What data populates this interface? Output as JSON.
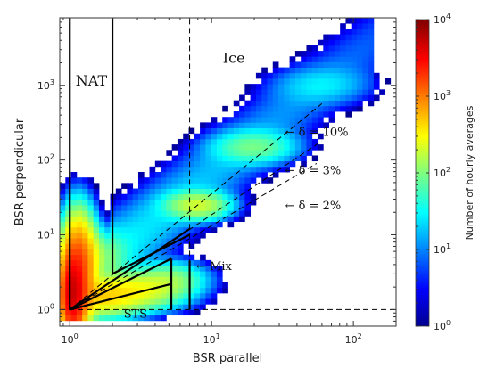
{
  "chart_data": {
    "type": "heatmap",
    "title": "",
    "xlabel": "BSR parallel",
    "ylabel": "BSR perpendicular",
    "xscale": "log",
    "yscale": "log",
    "xlim": [
      0.85,
      200
    ],
    "ylim": [
      0.6,
      8000
    ],
    "x_ticks": [
      {
        "value": 1,
        "base": "10",
        "exp": "0"
      },
      {
        "value": 10,
        "base": "10",
        "exp": "1"
      },
      {
        "value": 100,
        "base": "10",
        "exp": "2"
      }
    ],
    "y_ticks": [
      {
        "value": 1,
        "base": "10",
        "exp": "0"
      },
      {
        "value": 10,
        "base": "10",
        "exp": "1"
      },
      {
        "value": 100,
        "base": "10",
        "exp": "2"
      },
      {
        "value": 1000,
        "base": "10",
        "exp": "3"
      }
    ],
    "colorbar": {
      "label": "Number of hourly averages",
      "scale": "log",
      "range": [
        1,
        10000
      ],
      "colormap": "jet",
      "ticks": [
        {
          "value": 1,
          "base": "10",
          "exp": "0"
        },
        {
          "value": 10,
          "base": "10",
          "exp": "1"
        },
        {
          "value": 100,
          "base": "10",
          "exp": "2"
        },
        {
          "value": 1000,
          "base": "10",
          "exp": "3"
        },
        {
          "value": 10000,
          "base": "10",
          "exp": "4"
        }
      ]
    },
    "density_features": [
      {
        "x": 1.05,
        "y": 1.6,
        "sx": 0.045,
        "sy": 0.28,
        "peak": 3.6
      },
      {
        "x": 1.15,
        "y": 3.5,
        "sx": 0.06,
        "sy": 0.35,
        "peak": 3.2
      },
      {
        "x": 1.6,
        "y": 1.5,
        "sx": 0.16,
        "sy": 0.14,
        "peak": 2.6
      },
      {
        "x": 3.0,
        "y": 1.8,
        "sx": 0.18,
        "sy": 0.13,
        "peak": 2.4
      },
      {
        "x": 5.0,
        "y": 2.6,
        "sx": 0.14,
        "sy": 0.12,
        "peak": 2.0
      },
      {
        "x": 1.4,
        "y": 5.0,
        "sx": 0.12,
        "sy": 0.2,
        "peak": 2.2
      },
      {
        "x": 8.0,
        "y": 25,
        "sx": 0.12,
        "sy": 0.1,
        "peak": 2.3
      },
      {
        "x": 20,
        "y": 150,
        "sx": 0.16,
        "sy": 0.12,
        "peak": 1.9
      },
      {
        "x": 60,
        "y": 1000,
        "sx": 0.2,
        "sy": 0.14,
        "peak": 1.3
      }
    ],
    "lines": [
      {
        "name": "vertical-x1",
        "style": "solid",
        "points": [
          [
            1,
            1
          ],
          [
            1,
            8000
          ]
        ]
      },
      {
        "name": "vertical-x2",
        "style": "solid",
        "points": [
          [
            2,
            3
          ],
          [
            2,
            8000
          ]
        ]
      },
      {
        "name": "vertical-x5",
        "style": "solid",
        "points": [
          [
            5.2,
            1
          ],
          [
            5.2,
            4.8
          ]
        ]
      },
      {
        "name": "vertical-x7",
        "style": "solid",
        "points": [
          [
            7,
            1
          ],
          [
            7,
            4.5
          ]
        ]
      },
      {
        "name": "sts-upper",
        "style": "solid",
        "points": [
          [
            1,
            1
          ],
          [
            5.2,
            4.8
          ]
        ]
      },
      {
        "name": "sts-lower",
        "style": "solid",
        "points": [
          [
            1,
            1
          ],
          [
            5.2,
            2.2
          ]
        ]
      },
      {
        "name": "nat-lower",
        "style": "solid",
        "points": [
          [
            2,
            3
          ],
          [
            7,
            10
          ]
        ]
      },
      {
        "name": "nat-upper",
        "style": "solid",
        "points": [
          [
            1,
            1
          ],
          [
            7,
            12
          ]
        ]
      },
      {
        "name": "ice-boundary",
        "style": "dashed",
        "points": [
          [
            7,
            1
          ],
          [
            7,
            8000
          ]
        ]
      },
      {
        "name": "mix-boundary",
        "style": "dashed",
        "points": [
          [
            0.85,
            1
          ],
          [
            200,
            1
          ]
        ]
      },
      {
        "name": "delta-10",
        "style": "dashed",
        "points": [
          [
            1,
            1
          ],
          [
            60,
            570
          ]
        ]
      },
      {
        "name": "delta-3",
        "style": "dashed",
        "points": [
          [
            1,
            1
          ],
          [
            60,
            180
          ]
        ]
      },
      {
        "name": "delta-2",
        "style": "dashed",
        "points": [
          [
            1,
            1
          ],
          [
            55,
            90
          ]
        ]
      }
    ],
    "annotations": [
      {
        "id": "nat",
        "text": "NAT",
        "x": 1.1,
        "y": 1000,
        "size": "region"
      },
      {
        "id": "ice",
        "text": "Ice",
        "x": 12,
        "y": 2000,
        "size": "region"
      },
      {
        "id": "mix",
        "text": "← Mix",
        "x": 7.8,
        "y": 3.4,
        "size": "small"
      },
      {
        "id": "sts",
        "text": "STS",
        "x": 2.4,
        "y": 0.78,
        "size": "small"
      },
      {
        "id": "d10",
        "text": "← δ = 10%",
        "x": 33,
        "y": 210,
        "size": "small"
      },
      {
        "id": "d3",
        "text": "← δ = 3%",
        "x": 33,
        "y": 65,
        "size": "small"
      },
      {
        "id": "d2",
        "text": "← δ = 2%",
        "x": 33,
        "y": 22,
        "size": "small"
      }
    ]
  }
}
